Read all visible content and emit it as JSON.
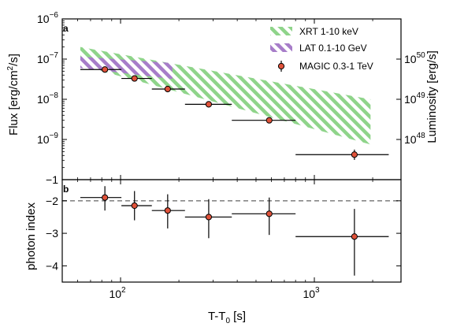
{
  "chart_data": {
    "type": "scatter",
    "x_scale": "log",
    "xlim": [
      50,
      2800
    ],
    "xlabel_main": "T-T",
    "xlabel_sub": "0",
    "xlabel_unit": " [s]",
    "x_ticks": [
      {
        "value": 100,
        "base": "10",
        "exp": "2"
      },
      {
        "value": 1000,
        "base": "10",
        "exp": "3"
      }
    ],
    "panels": [
      {
        "letter": "a",
        "y_scale": "log",
        "ylim": [
          1e-10,
          1e-06
        ],
        "ylabel_main": "Flux [erg/cm",
        "ylabel_sup": "2",
        "ylabel_end": "/s]",
        "y_ticks": [
          {
            "value": 1e-06,
            "base": "10",
            "exp": "−6"
          },
          {
            "value": 1e-07,
            "base": "10",
            "exp": "−7"
          },
          {
            "value": 1e-08,
            "base": "10",
            "exp": "−8"
          },
          {
            "value": 1e-09,
            "base": "10",
            "exp": "−9"
          },
          {
            "value": 1e-10,
            "base": "",
            "exp": "−1"
          }
        ],
        "right_axis": {
          "label": "Luminosity [erg/s]",
          "ticks": [
            {
              "flux_position": 1e-07,
              "base": "10",
              "exp": "50"
            },
            {
              "flux_position": 1e-08,
              "base": "10",
              "exp": "49"
            },
            {
              "flux_position": 1e-09,
              "base": "10",
              "exp": "48"
            }
          ]
        },
        "bands": [
          {
            "name": "XRT 1-10 keV",
            "color": "#8fd48a",
            "upper": [
              [
                62,
                2e-07
              ],
              [
                1950,
                1e-08
              ]
            ],
            "lower": [
              [
                62,
                7e-08
              ],
              [
                1950,
                7.5e-10
              ]
            ]
          },
          {
            "name": "LAT 0.1-10 GeV",
            "color": "#a77dc9",
            "upper": [
              [
                62,
                1.15e-07
              ],
              [
                185,
                8e-08
              ]
            ],
            "lower": [
              [
                62,
                6e-08
              ],
              [
                185,
                3.2e-08
              ]
            ]
          }
        ],
        "series": [
          {
            "name": "MAGIC 0.3-1 TeV",
            "marker_color": "#e0523a",
            "points": [
              {
                "x": 83,
                "xlo": 62,
                "xhi": 101,
                "y": 5.5e-08,
                "ylo": 4.8e-08,
                "yhi": 6.4e-08
              },
              {
                "x": 118,
                "xlo": 101,
                "xhi": 145,
                "y": 3.3e-08,
                "ylo": 2.9e-08,
                "yhi": 3.8e-08
              },
              {
                "x": 175,
                "xlo": 145,
                "xhi": 215,
                "y": 1.8e-08,
                "ylo": 1.55e-08,
                "yhi": 2.1e-08
              },
              {
                "x": 285,
                "xlo": 215,
                "xhi": 375,
                "y": 7.5e-09,
                "ylo": 6.3e-09,
                "yhi": 8.9e-09
              },
              {
                "x": 585,
                "xlo": 375,
                "xhi": 800,
                "y": 3e-09,
                "ylo": 2.55e-09,
                "yhi": 3.5e-09
              },
              {
                "x": 1610,
                "xlo": 800,
                "xhi": 2420,
                "y": 4.2e-10,
                "ylo": 3.1e-10,
                "yhi": 5.6e-10
              }
            ]
          }
        ],
        "legend_position": "top-right"
      },
      {
        "letter": "b",
        "y_scale": "linear",
        "ylim": [
          -4.5,
          -1.35
        ],
        "ylabel": "photon index",
        "y_ticks": [
          -2,
          -3,
          -4
        ],
        "y_tick_labels": [
          "−2",
          "−3",
          "−4"
        ],
        "reference_line": {
          "y": -2,
          "color": "#888888",
          "style": "dashed"
        },
        "series": [
          {
            "name": "MAGIC 0.3-1 TeV",
            "marker_color": "#e0523a",
            "points": [
              {
                "x": 83,
                "xlo": 62,
                "xhi": 101,
                "y": -1.9,
                "ylo": -2.3,
                "yhi": -1.55
              },
              {
                "x": 118,
                "xlo": 101,
                "xhi": 145,
                "y": -2.15,
                "ylo": -2.6,
                "yhi": -1.7
              },
              {
                "x": 175,
                "xlo": 145,
                "xhi": 215,
                "y": -2.3,
                "ylo": -2.85,
                "yhi": -1.8
              },
              {
                "x": 285,
                "xlo": 215,
                "xhi": 375,
                "y": -2.5,
                "ylo": -3.15,
                "yhi": -1.95
              },
              {
                "x": 585,
                "xlo": 375,
                "xhi": 800,
                "y": -2.4,
                "ylo": -3.05,
                "yhi": -1.9
              },
              {
                "x": 1610,
                "xlo": 800,
                "xhi": 2420,
                "y": -3.1,
                "ylo": -4.3,
                "yhi": -2.25
              }
            ]
          }
        ]
      }
    ]
  }
}
